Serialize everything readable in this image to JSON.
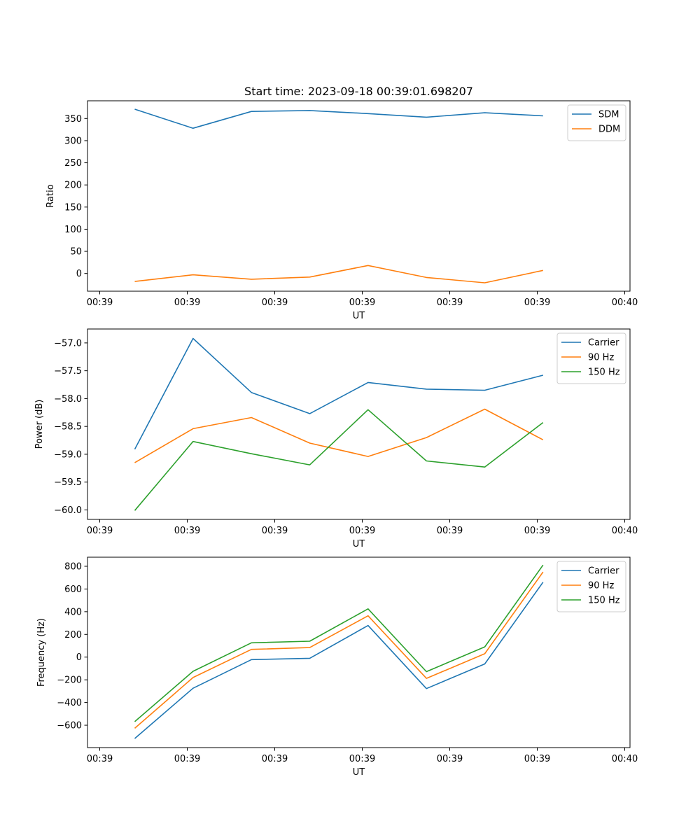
{
  "figure": {
    "title": "Start time: 2023-09-18 00:39:01.698207"
  },
  "chart_data": [
    {
      "type": "line",
      "title": "Start time: 2023-09-18 00:39:01.698207",
      "xlabel": "UT",
      "ylabel": "Ratio",
      "x": [
        1,
        2,
        3,
        4,
        5,
        6,
        7,
        8
      ],
      "xlim": [
        0.19,
        9.49
      ],
      "xticks": [
        0.4,
        1.9,
        3.4,
        4.9,
        6.4,
        7.9,
        9.4
      ],
      "xtick_labels": [
        "00:39",
        "00:39",
        "00:39",
        "00:39",
        "00:39",
        "00:39",
        "00:40"
      ],
      "ylim": [
        -40,
        390
      ],
      "yticks": [
        0,
        50,
        100,
        150,
        200,
        250,
        300,
        350
      ],
      "ytick_labels": [
        "0",
        "50",
        "100",
        "150",
        "200",
        "250",
        "300",
        "350"
      ],
      "legend": "top-right",
      "series": [
        {
          "name": "SDM",
          "color": "#1f77b4",
          "values": [
            371,
            328,
            366,
            368,
            361,
            353,
            363,
            356
          ]
        },
        {
          "name": "DDM",
          "color": "#ff7f0e",
          "values": [
            -18,
            -3,
            -13,
            -8,
            18,
            -9,
            -21,
            7
          ]
        }
      ]
    },
    {
      "type": "line",
      "title": "",
      "xlabel": "UT",
      "ylabel": "Power (dB)",
      "x": [
        1,
        2,
        3,
        4,
        5,
        6,
        7,
        8
      ],
      "xlim": [
        0.19,
        9.49
      ],
      "xticks": [
        0.4,
        1.9,
        3.4,
        4.9,
        6.4,
        7.9,
        9.4
      ],
      "xtick_labels": [
        "00:39",
        "00:39",
        "00:39",
        "00:39",
        "00:39",
        "00:39",
        "00:40"
      ],
      "ylim": [
        -60.17,
        -56.75
      ],
      "yticks": [
        -60.0,
        -59.5,
        -59.0,
        -58.5,
        -58.0,
        -57.5,
        -57.0
      ],
      "ytick_labels": [
        "−60.0",
        "−59.5",
        "−59.0",
        "−58.5",
        "−58.0",
        "−57.5",
        "−57.0"
      ],
      "legend": "top-right",
      "series": [
        {
          "name": "Carrier",
          "color": "#1f77b4",
          "values": [
            -58.91,
            -56.92,
            -57.89,
            -58.27,
            -57.71,
            -57.83,
            -57.85,
            -57.58
          ]
        },
        {
          "name": "90 Hz",
          "color": "#ff7f0e",
          "values": [
            -59.15,
            -58.54,
            -58.34,
            -58.8,
            -59.04,
            -58.7,
            -58.19,
            -58.74
          ]
        },
        {
          "name": "150 Hz",
          "color": "#2ca02c",
          "values": [
            -60.01,
            -58.77,
            -58.99,
            -59.19,
            -58.2,
            -59.12,
            -59.23,
            -58.43
          ]
        }
      ]
    },
    {
      "type": "line",
      "title": "",
      "xlabel": "UT",
      "ylabel": "Frequency (Hz)",
      "x": [
        1,
        2,
        3,
        4,
        5,
        6,
        7,
        8
      ],
      "xlim": [
        0.19,
        9.49
      ],
      "xticks": [
        0.4,
        1.9,
        3.4,
        4.9,
        6.4,
        7.9,
        9.4
      ],
      "xtick_labels": [
        "00:39",
        "00:39",
        "00:39",
        "00:39",
        "00:39",
        "00:39",
        "00:40"
      ],
      "ylim": [
        -797,
        880
      ],
      "yticks": [
        -600,
        -400,
        -200,
        0,
        200,
        400,
        600,
        800
      ],
      "ytick_labels": [
        "−600",
        "−400",
        "−200",
        "0",
        "200",
        "400",
        "600",
        "800"
      ],
      "legend": "top-right",
      "series": [
        {
          "name": "Carrier",
          "color": "#1f77b4",
          "values": [
            -717,
            -274,
            -22,
            -10,
            278,
            -277,
            -60,
            660
          ]
        },
        {
          "name": "90 Hz",
          "color": "#ff7f0e",
          "values": [
            -627,
            -180,
            68,
            84,
            364,
            -187,
            30,
            750
          ]
        },
        {
          "name": "150 Hz",
          "color": "#2ca02c",
          "values": [
            -568,
            -125,
            126,
            140,
            425,
            -128,
            90,
            811
          ]
        }
      ]
    }
  ]
}
